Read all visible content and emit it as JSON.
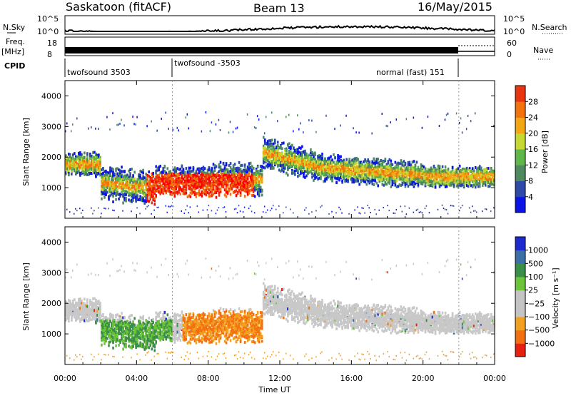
{
  "header": {
    "station": "Saskatoon (fitACF)",
    "beam": "Beam 13",
    "date": "16/May/2015"
  },
  "strip_labels": {
    "nsky": "N.Sky",
    "nsearch": "N.Search",
    "freq": "Freq.",
    "freq_unit": "[MHz]",
    "nave": "Nave",
    "cpid": "CPID",
    "nsky_top": "10^5",
    "nsky_bottom": "10^0",
    "freq_top": "18",
    "freq_bottom": "8",
    "nave_top": "60",
    "nave_bottom": "0"
  },
  "cpid_segments": [
    "twofsound 3503",
    "twofsound -3503",
    "normal (fast) 151"
  ],
  "colors": {
    "power": [
      "#0a14e6",
      "#2f49a8",
      "#4f8a5f",
      "#5eb748",
      "#c6d832",
      "#f2a713",
      "#f2720e",
      "#e83510",
      "#ff0000"
    ],
    "velocity": [
      "#1e2ad0",
      "#3a6fa8",
      "#3a8f48",
      "#6cc43a",
      "#c4c4c4",
      "#c4c4c4",
      "#f2a020",
      "#f27010",
      "#e82010"
    ],
    "ground_scatter": "#c8c8c8"
  },
  "chart_data": [
    {
      "type": "heatmap",
      "panel": "power",
      "ylabel": "Slant Range [km]",
      "yticks": [
        "1000",
        "2000",
        "3000",
        "4000"
      ],
      "ylim": [
        0,
        4500
      ],
      "xlim": [
        "00:00",
        "24:00"
      ],
      "colorbar_label": "Power [dB]",
      "colorbar_ticks": [
        "4",
        "8",
        "12",
        "16",
        "20",
        "24",
        "28"
      ]
    },
    {
      "type": "heatmap",
      "panel": "velocity",
      "ylabel": "Slant Range [km]",
      "yticks": [
        "1000",
        "2000",
        "3000",
        "4000"
      ],
      "ylim": [
        0,
        4500
      ],
      "xlabel": "Time UT",
      "xticks": [
        "00:00",
        "04:00",
        "08:00",
        "12:00",
        "16:00",
        "20:00",
        "00:00"
      ],
      "colorbar_label": "Velocity [m s⁻¹]",
      "colorbar_ticks": [
        "1000",
        "500",
        "100",
        "25",
        "−25",
        "−100",
        "−500",
        "−1000"
      ]
    }
  ]
}
